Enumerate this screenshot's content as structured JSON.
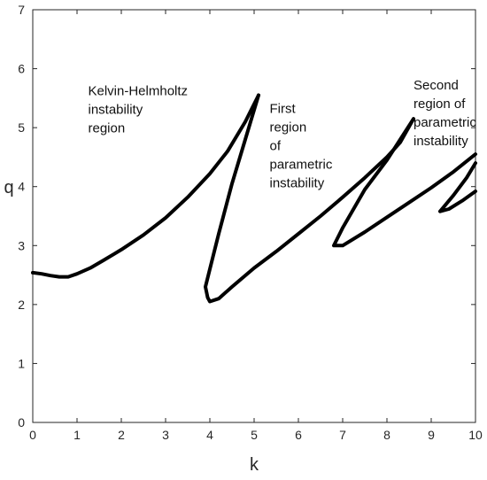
{
  "chart_data": {
    "type": "line",
    "title": "",
    "xlabel": "k",
    "ylabel": "q",
    "xlim": [
      0,
      10
    ],
    "ylim": [
      0,
      7
    ],
    "xticks": [
      0,
      1,
      2,
      3,
      4,
      5,
      6,
      7,
      8,
      9,
      10
    ],
    "yticks": [
      0,
      1,
      2,
      3,
      4,
      5,
      6,
      7
    ],
    "grid": false,
    "legend": "none",
    "color": "#000000",
    "annotations": [
      {
        "lines": [
          "Kelvin-Helmholtz",
          "instability",
          "region"
        ],
        "x": 1.25,
        "y": 5.55
      },
      {
        "lines": [
          "First",
          "region",
          "of",
          "parametric",
          "instability"
        ],
        "x": 5.35,
        "y": 5.25
      },
      {
        "lines": [
          "Second",
          "region of",
          "parametric",
          "instability"
        ],
        "x": 8.6,
        "y": 5.65
      }
    ],
    "series": [
      {
        "values": [
          [
            0.0,
            2.54
          ],
          [
            0.2,
            2.52
          ],
          [
            0.4,
            2.49
          ],
          [
            0.6,
            2.47
          ],
          [
            0.8,
            2.47
          ],
          [
            1.0,
            2.52
          ],
          [
            1.3,
            2.62
          ],
          [
            1.6,
            2.75
          ],
          [
            2.0,
            2.93
          ],
          [
            2.5,
            3.18
          ],
          [
            3.0,
            3.47
          ],
          [
            3.5,
            3.82
          ],
          [
            4.0,
            4.22
          ],
          [
            4.4,
            4.6
          ],
          [
            4.8,
            5.1
          ],
          [
            5.1,
            5.55
          ]
        ]
      },
      {
        "values": [
          [
            5.1,
            5.55
          ],
          [
            4.8,
            4.8
          ],
          [
            4.5,
            4.05
          ],
          [
            4.2,
            3.2
          ],
          [
            4.0,
            2.6
          ],
          [
            3.9,
            2.3
          ],
          [
            3.95,
            2.12
          ],
          [
            4.0,
            2.05
          ],
          [
            4.2,
            2.1
          ],
          [
            4.5,
            2.3
          ],
          [
            5.0,
            2.62
          ],
          [
            5.5,
            2.9
          ],
          [
            6.0,
            3.2
          ],
          [
            6.5,
            3.5
          ],
          [
            7.0,
            3.82
          ],
          [
            7.5,
            4.15
          ],
          [
            8.0,
            4.5
          ],
          [
            8.3,
            4.75
          ],
          [
            8.6,
            5.15
          ]
        ]
      },
      {
        "values": [
          [
            8.6,
            5.15
          ],
          [
            8.3,
            4.8
          ],
          [
            8.0,
            4.45
          ],
          [
            7.5,
            3.95
          ],
          [
            7.0,
            3.3
          ],
          [
            6.8,
            3.0
          ],
          [
            7.0,
            3.0
          ],
          [
            7.5,
            3.23
          ],
          [
            8.0,
            3.48
          ],
          [
            8.5,
            3.73
          ],
          [
            9.0,
            3.98
          ],
          [
            9.5,
            4.25
          ],
          [
            10.0,
            4.55
          ]
        ]
      },
      {
        "values": [
          [
            10.0,
            4.4
          ],
          [
            9.8,
            4.15
          ],
          [
            9.5,
            3.85
          ],
          [
            9.2,
            3.58
          ],
          [
            9.4,
            3.62
          ],
          [
            9.7,
            3.76
          ],
          [
            10.0,
            3.92
          ]
        ]
      }
    ]
  }
}
